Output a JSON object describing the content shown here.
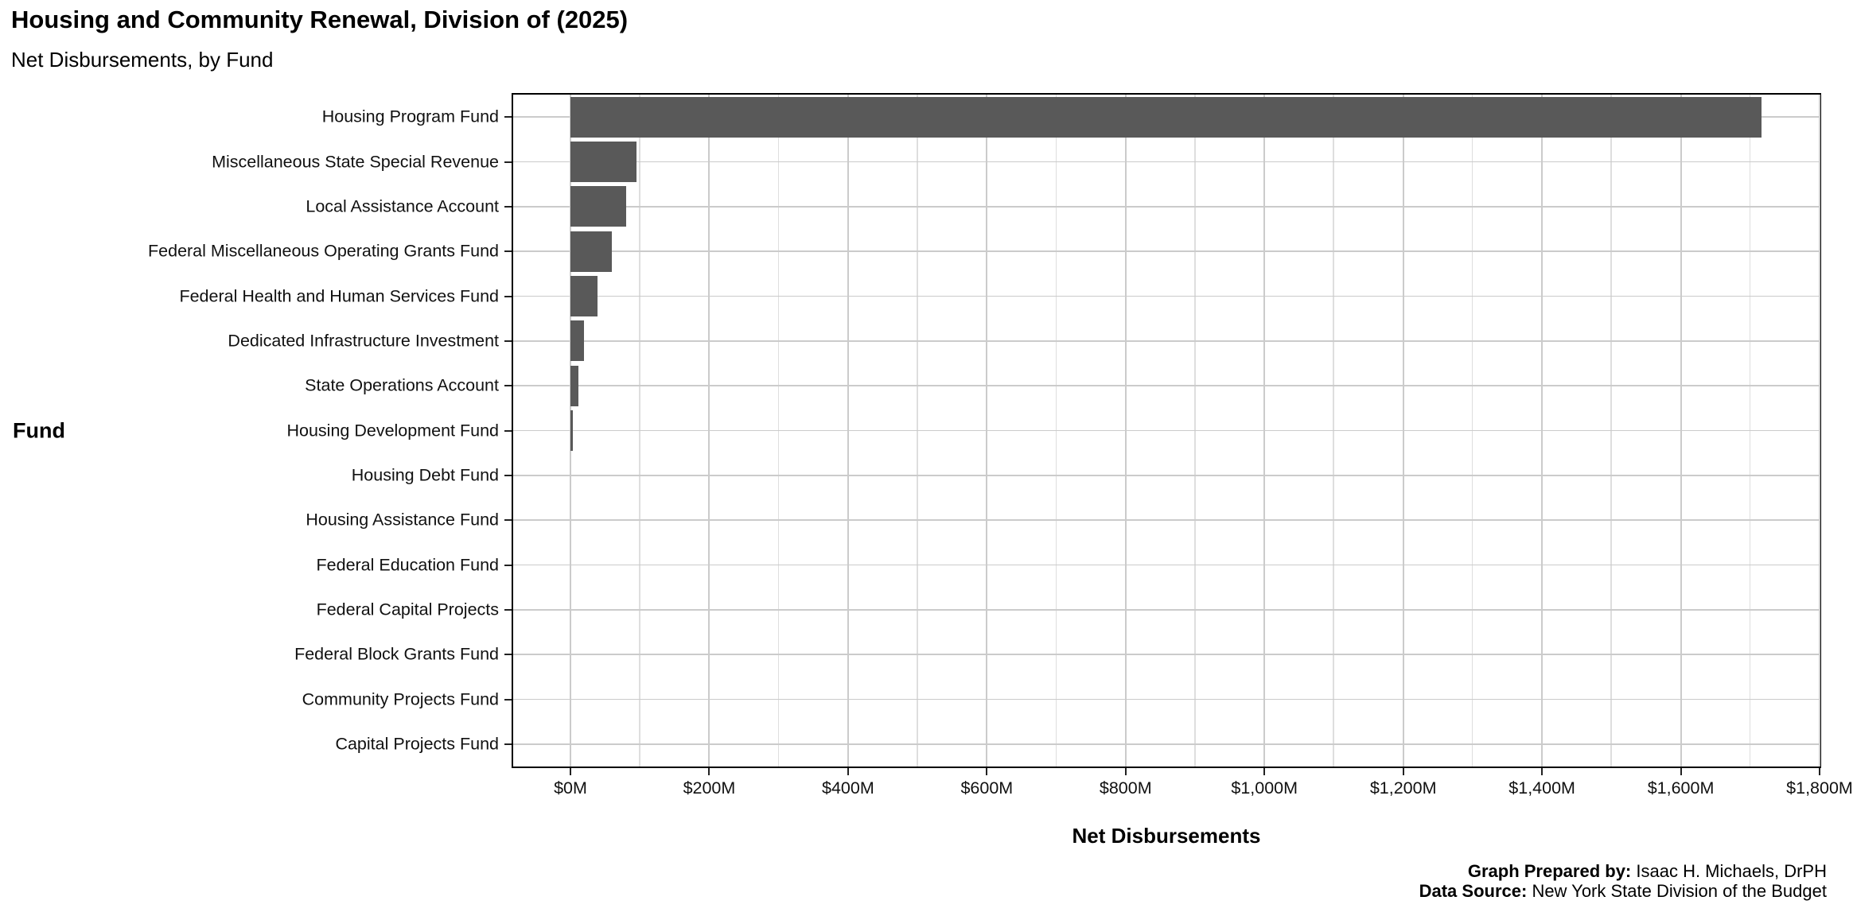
{
  "header": {
    "title": "Housing and Community Renewal, Division of (2025)",
    "subtitle": "Net Disbursements, by Fund"
  },
  "chart_data": {
    "type": "bar",
    "orientation": "horizontal",
    "title": "Housing and Community Renewal, Division of (2025)",
    "subtitle": "Net Disbursements, by Fund",
    "xlabel": "Net Disbursements",
    "ylabel": "Fund",
    "x_unit": "USD millions",
    "xlim": [
      0,
      1800
    ],
    "x_major_tick_interval": 200,
    "x_minor_gridline_interval": 100,
    "x_tick_labels": [
      "$0M",
      "$200M",
      "$400M",
      "$600M",
      "$800M",
      "$1,000M",
      "$1,200M",
      "$1,400M",
      "$1,600M",
      "$1,800M"
    ],
    "categories": [
      "Housing Program Fund",
      "Miscellaneous State Special Revenue",
      "Local Assistance Account",
      "Federal Miscellaneous Operating Grants Fund",
      "Federal Health and Human Services Fund",
      "Dedicated Infrastructure Investment",
      "State Operations Account",
      "Housing Development Fund",
      "Housing Debt Fund",
      "Housing Assistance Fund",
      "Federal Education Fund",
      "Federal Capital Projects",
      "Federal Block Grants Fund",
      "Community Projects Fund",
      "Capital Projects Fund"
    ],
    "values": [
      1716,
      95,
      80,
      60,
      39,
      19,
      12,
      4,
      0,
      0,
      0,
      0,
      0,
      0,
      0
    ],
    "bar_color": "#595959",
    "grid": true,
    "legend": false
  },
  "footer": {
    "prepared_by_label": "Graph Prepared by:",
    "prepared_by_value": "Isaac H. Michaels, DrPH",
    "source_label": "Data Source:",
    "source_value": "New York State Division of the Budget"
  }
}
